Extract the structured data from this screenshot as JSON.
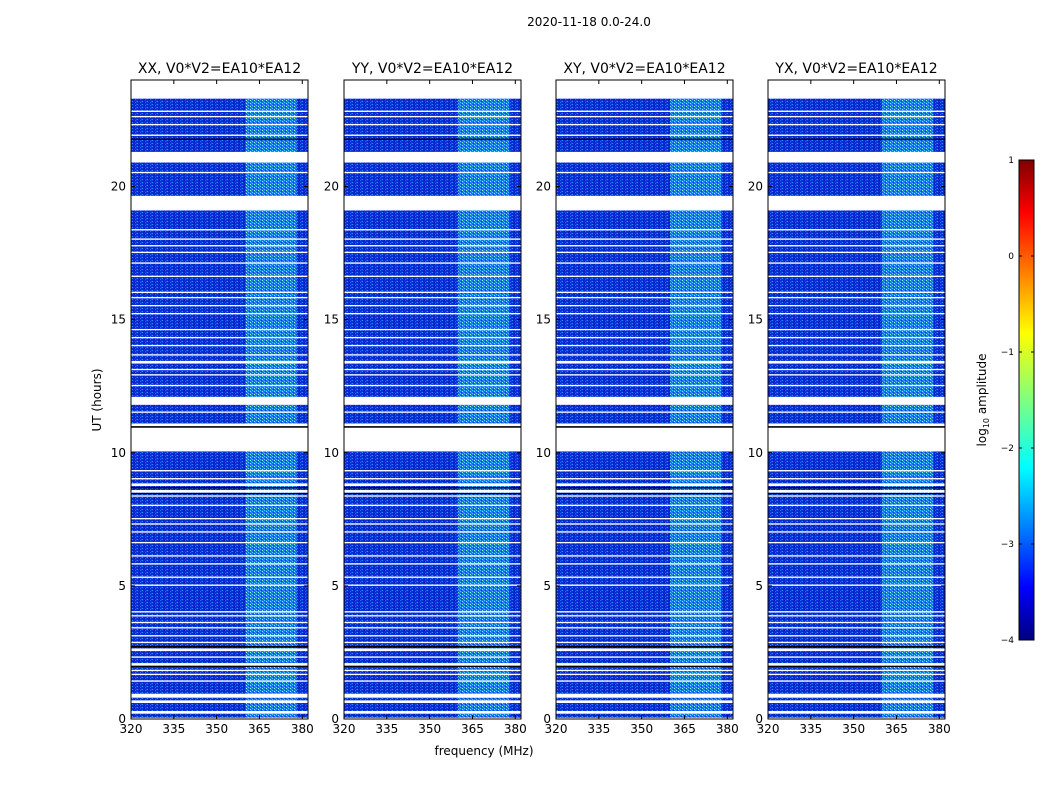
{
  "figure": {
    "suptitle": "2020-11-18 0.0-24.0",
    "xlabel": "frequency (MHz)",
    "ylabel": "UT (hours)"
  },
  "chart_data": {
    "type": "heatmap",
    "x_range": [
      320,
      382
    ],
    "x_ticks": [
      320,
      335,
      350,
      365,
      380
    ],
    "y_range": [
      0,
      24
    ],
    "y_ticks": [
      0,
      5,
      10,
      15,
      20
    ],
    "colormap": "jet",
    "panels": [
      {
        "title": "XX, V0*V2=EA10*EA12"
      },
      {
        "title": "YY, V0*V2=EA10*EA12"
      },
      {
        "title": "XY, V0*V2=EA10*EA12"
      },
      {
        "title": "YX, V0*V2=EA10*EA12"
      }
    ],
    "rfi_band_mhz": [
      360,
      378
    ],
    "blank_rows_hours": [
      [
        0.0,
        0.05
      ],
      [
        0.2,
        0.3
      ],
      [
        0.6,
        0.7
      ],
      [
        0.8,
        0.95
      ],
      [
        1.4,
        1.45
      ],
      [
        1.65,
        1.7
      ],
      [
        1.8,
        1.85
      ],
      [
        2.0,
        2.1
      ],
      [
        2.3,
        2.35
      ],
      [
        2.55,
        2.65
      ],
      [
        2.85,
        2.9
      ],
      [
        3.1,
        3.15
      ],
      [
        3.4,
        3.45
      ],
      [
        3.6,
        3.65
      ],
      [
        3.85,
        3.9
      ],
      [
        4.0,
        4.05
      ],
      [
        5.0,
        5.05
      ],
      [
        5.3,
        5.35
      ],
      [
        5.8,
        5.85
      ],
      [
        6.1,
        6.15
      ],
      [
        6.6,
        6.65
      ],
      [
        7.0,
        7.05
      ],
      [
        7.3,
        7.35
      ],
      [
        7.5,
        7.55
      ],
      [
        8.0,
        8.05
      ],
      [
        8.35,
        8.4
      ],
      [
        8.5,
        8.6
      ],
      [
        8.75,
        8.85
      ],
      [
        9.0,
        9.05
      ],
      [
        9.3,
        9.35
      ],
      [
        10.05,
        11.1
      ],
      [
        11.5,
        11.55
      ],
      [
        11.8,
        12.1
      ],
      [
        12.5,
        12.55
      ],
      [
        12.9,
        12.95
      ],
      [
        13.1,
        13.15
      ],
      [
        13.35,
        13.45
      ],
      [
        13.65,
        13.7
      ],
      [
        14.0,
        14.05
      ],
      [
        14.3,
        14.35
      ],
      [
        14.6,
        14.65
      ],
      [
        15.2,
        15.25
      ],
      [
        15.5,
        15.55
      ],
      [
        15.8,
        15.85
      ],
      [
        16.0,
        16.05
      ],
      [
        16.6,
        16.65
      ],
      [
        17.1,
        17.15
      ],
      [
        17.5,
        17.55
      ],
      [
        17.75,
        17.8
      ],
      [
        18.0,
        18.05
      ],
      [
        18.35,
        18.4
      ],
      [
        19.1,
        19.65
      ],
      [
        20.5,
        20.55
      ],
      [
        20.9,
        21.3
      ],
      [
        21.9,
        21.95
      ],
      [
        22.3,
        22.35
      ],
      [
        22.6,
        22.65
      ],
      [
        22.8,
        22.85
      ],
      [
        23.3,
        24.0
      ]
    ],
    "black_rows_hours": [
      [
        1.96,
        2.0
      ],
      [
        2.68,
        2.74
      ],
      [
        8.45,
        8.49
      ],
      [
        8.66,
        8.71
      ],
      [
        10.94,
        11.0
      ],
      [
        21.76,
        21.8
      ]
    ],
    "colorbar": {
      "label_prefix": "log",
      "label_sub": "10",
      "label_suffix": " amplitude",
      "range": [
        -4,
        1
      ],
      "ticks": [
        -4,
        -3,
        -2,
        -1,
        0,
        1
      ],
      "tick_labels": [
        "−4",
        "−3",
        "−2",
        "−1",
        "0",
        "1"
      ]
    }
  }
}
